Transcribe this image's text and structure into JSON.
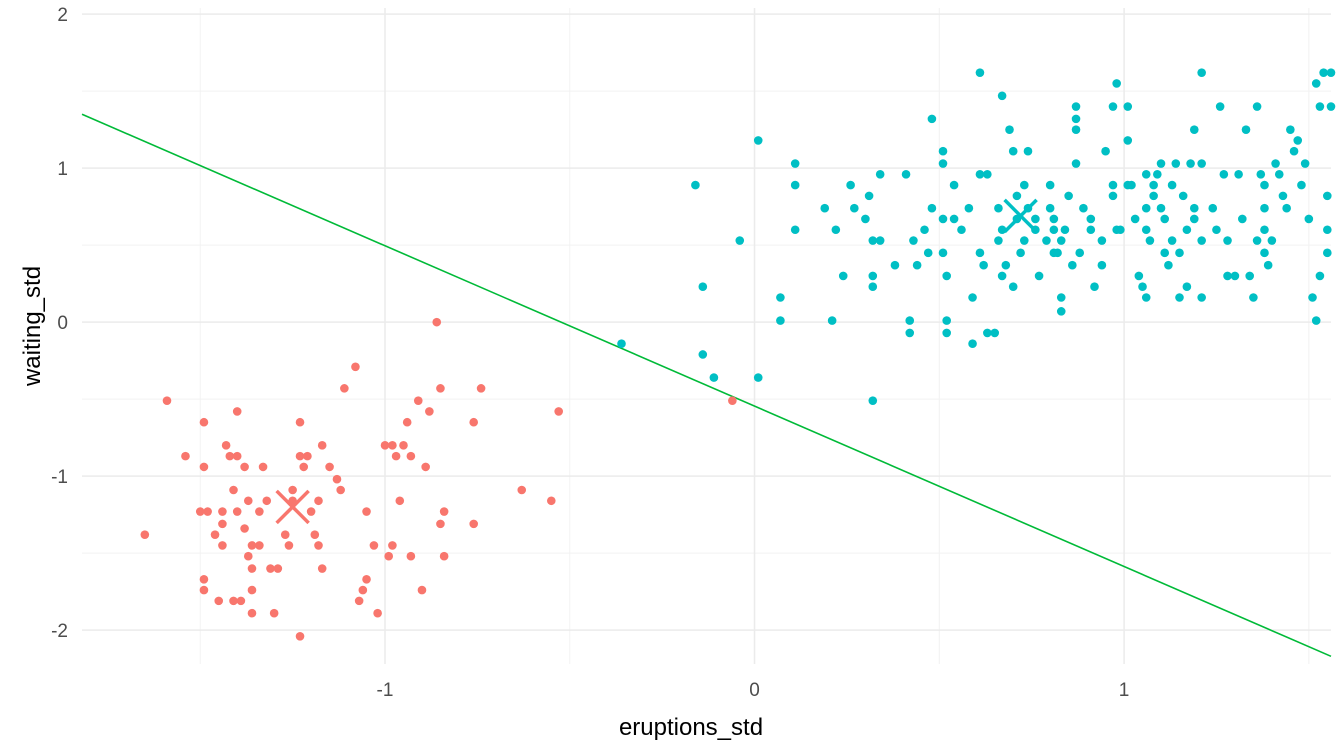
{
  "chart_data": {
    "type": "scatter",
    "title": "",
    "xlabel": "eruptions_std",
    "ylabel": "waiting_std",
    "xlim": [
      -1.82,
      1.56
    ],
    "ylim": [
      -2.22,
      2.04
    ],
    "x_ticks": [
      -1,
      0,
      1
    ],
    "x_tick_labels": [
      "-1",
      "0",
      "1"
    ],
    "y_ticks": [
      -2,
      -1,
      0,
      1,
      2
    ],
    "y_tick_labels": [
      "-2",
      "-1",
      "0",
      "1",
      "2"
    ],
    "grid": true,
    "legend": "none",
    "series": [
      {
        "color": "#F8766D",
        "points": [
          [
            -1.65,
            -1.38
          ],
          [
            -1.59,
            -0.51
          ],
          [
            -1.54,
            -0.87
          ],
          [
            -1.5,
            -1.23
          ],
          [
            -1.49,
            -0.65
          ],
          [
            -1.49,
            -0.94
          ],
          [
            -1.48,
            -1.23
          ],
          [
            -1.49,
            -1.67
          ],
          [
            -1.49,
            -1.74
          ],
          [
            -1.46,
            -1.38
          ],
          [
            -1.45,
            -1.81
          ],
          [
            -1.44,
            -1.23
          ],
          [
            -1.44,
            -1.31
          ],
          [
            -1.44,
            -1.45
          ],
          [
            -1.43,
            -0.8
          ],
          [
            -1.42,
            -0.87
          ],
          [
            -1.41,
            -1.81
          ],
          [
            -1.41,
            -1.09
          ],
          [
            -1.4,
            -0.58
          ],
          [
            -1.4,
            -0.87
          ],
          [
            -1.4,
            -1.23
          ],
          [
            -1.39,
            -1.81
          ],
          [
            -1.38,
            -1.34
          ],
          [
            -1.38,
            -0.94
          ],
          [
            -1.37,
            -1.16
          ],
          [
            -1.37,
            -1.52
          ],
          [
            -1.36,
            -1.45
          ],
          [
            -1.36,
            -1.6
          ],
          [
            -1.36,
            -1.74
          ],
          [
            -1.36,
            -1.89
          ],
          [
            -1.34,
            -1.45
          ],
          [
            -1.34,
            -1.23
          ],
          [
            -1.33,
            -0.94
          ],
          [
            -1.32,
            -1.16
          ],
          [
            -1.31,
            -1.6
          ],
          [
            -1.3,
            -1.89
          ],
          [
            -1.29,
            -1.6
          ],
          [
            -1.27,
            -1.38
          ],
          [
            -1.26,
            -1.45
          ],
          [
            -1.25,
            -1.09
          ],
          [
            -1.25,
            -1.16
          ],
          [
            -1.23,
            -2.04
          ],
          [
            -1.23,
            -0.65
          ],
          [
            -1.23,
            -0.87
          ],
          [
            -1.22,
            -0.94
          ],
          [
            -1.21,
            -0.87
          ],
          [
            -1.2,
            -1.23
          ],
          [
            -1.19,
            -1.38
          ],
          [
            -1.18,
            -1.45
          ],
          [
            -1.17,
            -1.6
          ],
          [
            -1.18,
            -1.16
          ],
          [
            -1.17,
            -0.8
          ],
          [
            -1.15,
            -0.94
          ],
          [
            -1.13,
            -1.02
          ],
          [
            -1.12,
            -1.09
          ],
          [
            -1.11,
            -0.43
          ],
          [
            -1.08,
            -0.29
          ],
          [
            -1.07,
            -1.81
          ],
          [
            -1.06,
            -1.74
          ],
          [
            -1.05,
            -1.23
          ],
          [
            -1.05,
            -1.67
          ],
          [
            -1.03,
            -1.45
          ],
          [
            -1.02,
            -1.89
          ],
          [
            -1.0,
            -0.8
          ],
          [
            -0.99,
            -1.52
          ],
          [
            -0.98,
            -0.8
          ],
          [
            -0.98,
            -1.45
          ],
          [
            -0.97,
            -0.87
          ],
          [
            -0.96,
            -1.16
          ],
          [
            -0.95,
            -0.8
          ],
          [
            -0.94,
            -0.65
          ],
          [
            -0.93,
            -0.87
          ],
          [
            -0.93,
            -1.52
          ],
          [
            -0.91,
            -0.51
          ],
          [
            -0.9,
            -1.74
          ],
          [
            -0.88,
            -0.58
          ],
          [
            -0.89,
            -0.94
          ],
          [
            -0.86,
            0.0
          ],
          [
            -0.85,
            -0.43
          ],
          [
            -0.85,
            -1.31
          ],
          [
            -0.84,
            -1.23
          ],
          [
            -0.84,
            -1.52
          ],
          [
            -0.76,
            -0.65
          ],
          [
            -0.76,
            -1.31
          ],
          [
            -0.74,
            -0.43
          ],
          [
            -0.63,
            -1.09
          ],
          [
            -0.55,
            -1.16
          ],
          [
            -0.53,
            -0.58
          ],
          [
            -0.06,
            -0.51
          ]
        ],
        "centroid": [
          -1.25,
          -1.2
        ]
      },
      {
        "color": "#00BFC4",
        "points": [
          [
            -0.36,
            -0.14
          ],
          [
            -0.16,
            0.89
          ],
          [
            -0.14,
            0.23
          ],
          [
            -0.14,
            -0.21
          ],
          [
            -0.11,
            -0.36
          ],
          [
            -0.04,
            0.53
          ],
          [
            0.01,
            -0.36
          ],
          [
            0.01,
            1.18
          ],
          [
            0.07,
            0.16
          ],
          [
            0.07,
            0.01
          ],
          [
            0.11,
            1.03
          ],
          [
            0.11,
            0.89
          ],
          [
            0.11,
            0.6
          ],
          [
            0.19,
            0.74
          ],
          [
            0.21,
            0.01
          ],
          [
            0.22,
            0.6
          ],
          [
            0.24,
            0.3
          ],
          [
            0.26,
            0.89
          ],
          [
            0.27,
            0.74
          ],
          [
            0.3,
            0.67
          ],
          [
            0.31,
            0.82
          ],
          [
            0.32,
            0.53
          ],
          [
            0.32,
            0.3
          ],
          [
            0.32,
            0.23
          ],
          [
            0.32,
            -0.51
          ],
          [
            0.34,
            0.53
          ],
          [
            0.34,
            0.96
          ],
          [
            0.38,
            0.37
          ],
          [
            0.41,
            0.96
          ],
          [
            0.42,
            0.01
          ],
          [
            0.42,
            -0.07
          ],
          [
            0.43,
            0.53
          ],
          [
            0.44,
            0.37
          ],
          [
            0.46,
            0.6
          ],
          [
            0.47,
            0.45
          ],
          [
            0.48,
            1.32
          ],
          [
            0.48,
            0.74
          ],
          [
            0.51,
            0.67
          ],
          [
            0.51,
            0.45
          ],
          [
            0.51,
            1.11
          ],
          [
            0.51,
            1.03
          ],
          [
            0.52,
            0.3
          ],
          [
            0.52,
            0.01
          ],
          [
            0.52,
            -0.07
          ],
          [
            0.54,
            0.89
          ],
          [
            0.54,
            0.67
          ],
          [
            0.56,
            0.6
          ],
          [
            0.58,
            0.74
          ],
          [
            0.59,
            0.16
          ],
          [
            0.59,
            -0.14
          ],
          [
            0.61,
            0.96
          ],
          [
            0.61,
            1.62
          ],
          [
            0.61,
            0.45
          ],
          [
            0.62,
            0.37
          ],
          [
            0.63,
            0.96
          ],
          [
            0.63,
            -0.07
          ],
          [
            0.65,
            -0.07
          ],
          [
            0.66,
            0.53
          ],
          [
            0.66,
            0.74
          ],
          [
            0.67,
            0.3
          ],
          [
            0.67,
            0.6
          ],
          [
            0.67,
            1.47
          ],
          [
            0.68,
            0.37
          ],
          [
            0.69,
            1.25
          ],
          [
            0.7,
            1.11
          ],
          [
            0.7,
            0.23
          ],
          [
            0.71,
            0.82
          ],
          [
            0.71,
            0.67
          ],
          [
            0.72,
            0.45
          ],
          [
            0.73,
            0.89
          ],
          [
            0.73,
            0.53
          ],
          [
            0.74,
            0.74
          ],
          [
            0.74,
            1.11
          ],
          [
            0.76,
            0.67
          ],
          [
            0.76,
            0.6
          ],
          [
            0.77,
            0.3
          ],
          [
            0.79,
            0.53
          ],
          [
            0.8,
            0.89
          ],
          [
            0.8,
            0.74
          ],
          [
            0.81,
            0.67
          ],
          [
            0.81,
            0.6
          ],
          [
            0.81,
            0.45
          ],
          [
            0.82,
            0.45
          ],
          [
            0.83,
            0.53
          ],
          [
            0.83,
            0.16
          ],
          [
            0.83,
            0.07
          ],
          [
            0.84,
            0.6
          ],
          [
            0.85,
            0.82
          ],
          [
            0.86,
            0.37
          ],
          [
            0.87,
            1.03
          ],
          [
            0.87,
            1.4
          ],
          [
            0.87,
            1.32
          ],
          [
            0.87,
            1.25
          ],
          [
            0.88,
            0.45
          ],
          [
            0.89,
            0.74
          ],
          [
            0.91,
            0.67
          ],
          [
            0.91,
            0.6
          ],
          [
            0.92,
            0.23
          ],
          [
            0.94,
            0.37
          ],
          [
            0.94,
            0.53
          ],
          [
            0.95,
            1.11
          ],
          [
            0.97,
            0.82
          ],
          [
            0.97,
            0.89
          ],
          [
            0.97,
            1.4
          ],
          [
            0.98,
            1.55
          ],
          [
            0.98,
            0.6
          ],
          [
            0.99,
            0.6
          ],
          [
            1.01,
            1.18
          ],
          [
            1.01,
            1.4
          ],
          [
            1.01,
            0.89
          ],
          [
            1.02,
            0.89
          ],
          [
            1.03,
            0.67
          ],
          [
            1.04,
            0.3
          ],
          [
            1.05,
            0.23
          ],
          [
            1.06,
            0.74
          ],
          [
            1.06,
            0.96
          ],
          [
            1.06,
            0.6
          ],
          [
            1.06,
            0.16
          ],
          [
            1.07,
            0.53
          ],
          [
            1.08,
            0.89
          ],
          [
            1.08,
            0.82
          ],
          [
            1.09,
            0.96
          ],
          [
            1.1,
            0.74
          ],
          [
            1.1,
            1.03
          ],
          [
            1.11,
            0.45
          ],
          [
            1.11,
            0.67
          ],
          [
            1.12,
            0.37
          ],
          [
            1.13,
            0.89
          ],
          [
            1.13,
            0.53
          ],
          [
            1.14,
            1.03
          ],
          [
            1.15,
            0.45
          ],
          [
            1.15,
            0.16
          ],
          [
            1.16,
            0.82
          ],
          [
            1.17,
            0.6
          ],
          [
            1.17,
            0.23
          ],
          [
            1.18,
            1.03
          ],
          [
            1.19,
            0.74
          ],
          [
            1.19,
            0.67
          ],
          [
            1.19,
            1.25
          ],
          [
            1.21,
            0.53
          ],
          [
            1.21,
            1.03
          ],
          [
            1.21,
            1.62
          ],
          [
            1.21,
            0.16
          ],
          [
            1.24,
            0.74
          ],
          [
            1.25,
            0.6
          ],
          [
            1.26,
            1.4
          ],
          [
            1.27,
            0.96
          ],
          [
            1.28,
            0.53
          ],
          [
            1.28,
            0.3
          ],
          [
            1.3,
            0.3
          ],
          [
            1.31,
            0.96
          ],
          [
            1.32,
            0.67
          ],
          [
            1.33,
            1.25
          ],
          [
            1.34,
            0.3
          ],
          [
            1.35,
            0.16
          ],
          [
            1.36,
            0.53
          ],
          [
            1.36,
            1.4
          ],
          [
            1.37,
            0.96
          ],
          [
            1.38,
            0.89
          ],
          [
            1.38,
            0.74
          ],
          [
            1.38,
            0.6
          ],
          [
            1.38,
            0.45
          ],
          [
            1.39,
            0.37
          ],
          [
            1.4,
            0.53
          ],
          [
            1.41,
            1.03
          ],
          [
            1.42,
            0.96
          ],
          [
            1.43,
            0.82
          ],
          [
            1.44,
            0.74
          ],
          [
            1.45,
            1.25
          ],
          [
            1.46,
            1.11
          ],
          [
            1.47,
            1.18
          ],
          [
            1.48,
            0.89
          ],
          [
            1.49,
            1.03
          ],
          [
            1.5,
            0.67
          ],
          [
            1.51,
            0.16
          ],
          [
            1.52,
            0.01
          ],
          [
            1.52,
            1.55
          ],
          [
            1.53,
            1.4
          ],
          [
            1.53,
            0.3
          ],
          [
            1.54,
            1.62
          ],
          [
            1.55,
            0.82
          ],
          [
            1.55,
            0.6
          ],
          [
            1.55,
            0.45
          ],
          [
            1.56,
            1.62
          ],
          [
            1.56,
            1.4
          ]
        ],
        "centroid": [
          0.72,
          0.69
        ]
      }
    ],
    "decision_line": {
      "color": "#00BA38",
      "points": [
        [
          -1.82,
          1.35
        ],
        [
          1.56,
          -2.17
        ]
      ]
    }
  }
}
